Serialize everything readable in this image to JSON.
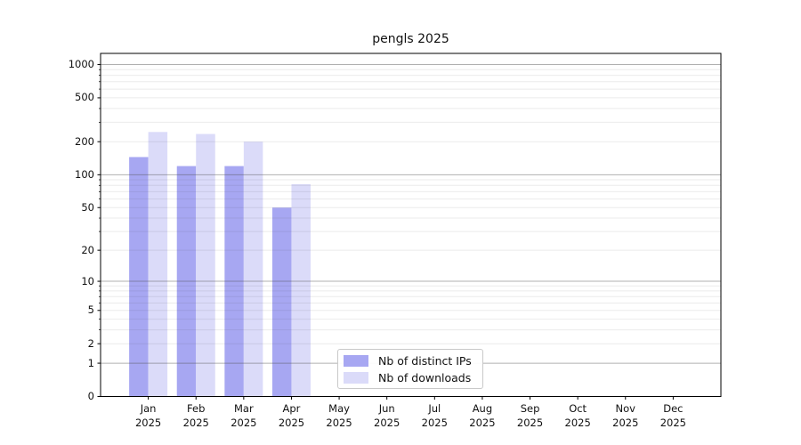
{
  "chart_data": {
    "type": "bar",
    "title": "pengls 2025",
    "xlabel": "",
    "ylabel": "",
    "y_scale": "log1p",
    "y_ticks": [
      0,
      1,
      2,
      5,
      10,
      20,
      50,
      100,
      200,
      500,
      1000
    ],
    "y_major_ticks": [
      1,
      10,
      100,
      1000
    ],
    "y_minor_gridlines": [
      3,
      4,
      6,
      7,
      8,
      9,
      30,
      40,
      60,
      70,
      80,
      90,
      300,
      400,
      600,
      700,
      800,
      900
    ],
    "ylim": [
      0,
      1385
    ],
    "grid": "on",
    "legend_position": "inside-bottom-center",
    "categories": [
      {
        "month": "Jan",
        "year": "2025"
      },
      {
        "month": "Feb",
        "year": "2025"
      },
      {
        "month": "Mar",
        "year": "2025"
      },
      {
        "month": "Apr",
        "year": "2025"
      },
      {
        "month": "May",
        "year": "2025"
      },
      {
        "month": "Jun",
        "year": "2025"
      },
      {
        "month": "Jul",
        "year": "2025"
      },
      {
        "month": "Aug",
        "year": "2025"
      },
      {
        "month": "Sep",
        "year": "2025"
      },
      {
        "month": "Oct",
        "year": "2025"
      },
      {
        "month": "Nov",
        "year": "2025"
      },
      {
        "month": "Dec",
        "year": "2025"
      }
    ],
    "series": [
      {
        "name": "Nb of distinct IPs",
        "color": "#a7a7f2",
        "values": [
          145,
          120,
          120,
          50,
          0,
          0,
          0,
          0,
          0,
          0,
          0,
          0
        ]
      },
      {
        "name": "Nb of downloads",
        "color": "#dbdbf9",
        "values": [
          245,
          235,
          200,
          82,
          0,
          0,
          0,
          0,
          0,
          0,
          0,
          0
        ]
      }
    ],
    "colors": {
      "major_gridline": "#b3b3b3",
      "minor_gridline": "#e8e8e8",
      "spine": "#000000",
      "text": "#111111",
      "background": "#ffffff"
    }
  }
}
